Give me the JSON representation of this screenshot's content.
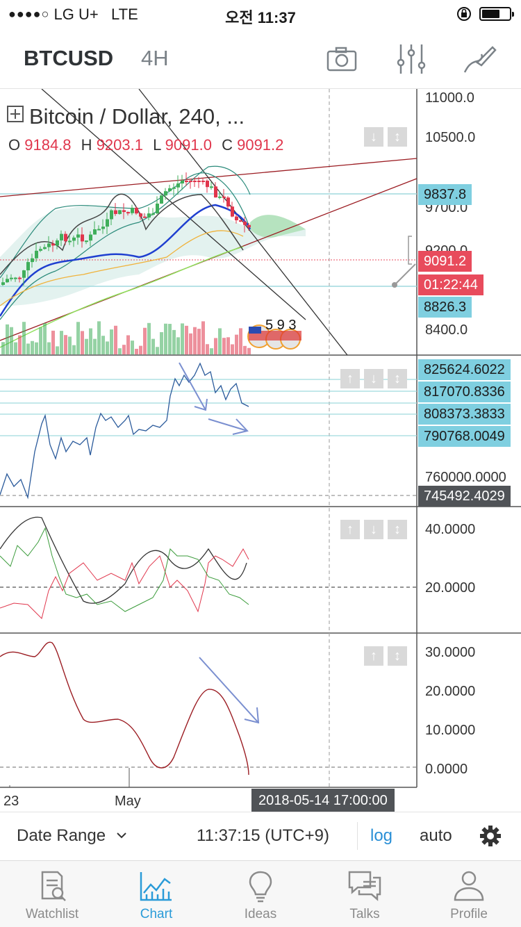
{
  "status_bar": {
    "signal": "●●●●○",
    "carrier": "LG U+",
    "network": "LTE",
    "time": "오전 11:37"
  },
  "header": {
    "symbol": "BTCUSD",
    "interval": "4H",
    "tools": [
      "camera-icon",
      "sliders-icon",
      "drawing-tool-icon"
    ]
  },
  "legend": {
    "title": "Bitcoin / Dollar, 240, ...",
    "o_label": "O",
    "o": "9184.8",
    "h_label": "H",
    "h": "9203.1",
    "l_label": "L",
    "l": "9091.0",
    "c_label": "C",
    "c": "9091.2",
    "event_numbers": "5  9  3"
  },
  "price_pane": {
    "axis": [
      "11000.0",
      "10500.0",
      "9700.0",
      "9200.0",
      "8400.0"
    ],
    "tags": {
      "upper": "9837.8",
      "last": "9091.2",
      "countdown": "01:22:44",
      "lower": "8826.3"
    }
  },
  "indicator1": {
    "axis": [
      "760000.0000"
    ],
    "tags": [
      "825624.6022",
      "817070.8336",
      "808373.3833",
      "790768.0049"
    ],
    "crosshair_tag": "745492.4029"
  },
  "indicator2": {
    "axis": [
      "40.0000",
      "20.0000"
    ]
  },
  "indicator3": {
    "axis": [
      "30.0000",
      "20.0000",
      "10.0000",
      "0.0000"
    ]
  },
  "time_axis": {
    "labels": [
      "23",
      "May"
    ],
    "crosshair_date": "2018-05-14 17:00:00"
  },
  "bottom_toolbar": {
    "date_range": "Date Range",
    "clock": "11:37:15 (UTC+9)",
    "log": "log",
    "auto": "auto"
  },
  "tabs": [
    {
      "label": "Watchlist",
      "icon": "watchlist-icon"
    },
    {
      "label": "Chart",
      "icon": "chart-icon",
      "active": true
    },
    {
      "label": "Ideas",
      "icon": "lightbulb-icon"
    },
    {
      "label": "Talks",
      "icon": "chat-icon"
    },
    {
      "label": "Profile",
      "icon": "user-icon"
    }
  ],
  "colors": {
    "up": "#3fae5a",
    "down": "#e0364c",
    "accent": "#2a9bd8",
    "tag_cyan": "#7fcfe0"
  }
}
